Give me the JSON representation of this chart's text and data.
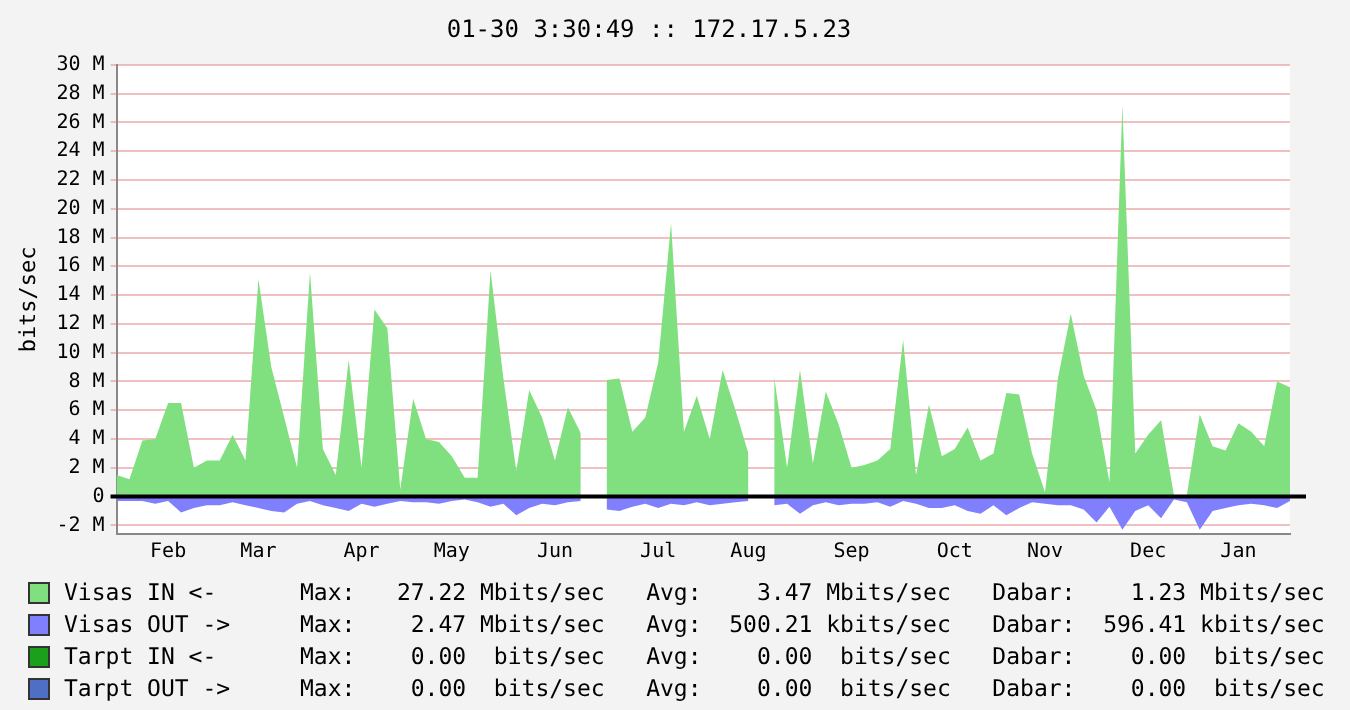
{
  "chart_data": {
    "type": "area",
    "title": "01-30 3:30:49 :: 172.17.5.23",
    "ylabel": "bits/sec",
    "categories": [
      null,
      null,
      null,
      null,
      "Feb",
      null,
      null,
      null,
      null,
      null,
      null,
      "Mar",
      null,
      null,
      null,
      null,
      null,
      null,
      null,
      "Apr",
      null,
      null,
      null,
      null,
      null,
      null,
      "May",
      null,
      null,
      null,
      null,
      null,
      null,
      null,
      "Jun",
      null,
      null,
      null,
      null,
      null,
      null,
      null,
      "Jul",
      null,
      null,
      null,
      null,
      null,
      null,
      "Aug",
      null,
      null,
      null,
      null,
      null,
      null,
      null,
      "Sep",
      null,
      null,
      null,
      null,
      null,
      null,
      null,
      "Oct",
      null,
      null,
      null,
      null,
      null,
      null,
      "Nov",
      null,
      null,
      null,
      null,
      null,
      null,
      null,
      "Dec",
      null,
      null,
      null,
      null,
      null,
      null,
      "Jan",
      null,
      null,
      null,
      null
    ],
    "ylim": [
      -2.6,
      30
    ],
    "yticks": [
      {
        "value": -2,
        "label": "-2 M"
      },
      0,
      {
        "value": 2,
        "label": "2 M"
      },
      {
        "value": 4,
        "label": "4 M"
      },
      {
        "value": 6,
        "label": "6 M"
      },
      {
        "value": 8,
        "label": "8 M"
      },
      {
        "value": 10,
        "label": "10 M"
      },
      {
        "value": 12,
        "label": "12 M"
      },
      {
        "value": 14,
        "label": "14 M"
      },
      {
        "value": 16,
        "label": "16 M"
      },
      {
        "value": 18,
        "label": "18 M"
      },
      {
        "value": 20,
        "label": "20 M"
      },
      {
        "value": 22,
        "label": "22 M"
      },
      {
        "value": 24,
        "label": "24 M"
      },
      {
        "value": 26,
        "label": "26 M"
      },
      {
        "value": 28,
        "label": "28 M"
      },
      {
        "value": 30,
        "label": "30 M"
      }
    ],
    "grid": "y",
    "legend": "bottom",
    "ref_lines": [
      {
        "axis": "y",
        "value": 0,
        "color": "#000000"
      }
    ],
    "series": [
      {
        "name": "Visas IN <-",
        "color": "#80e080",
        "values": [
          1.5,
          1.2,
          3.9,
          4.0,
          6.5,
          6.5,
          2.0,
          2.5,
          2.5,
          4.3,
          2.5,
          15.1,
          9.0,
          5.5,
          2.0,
          15.6,
          3.3,
          1.5,
          9.5,
          2.0,
          13.0,
          11.7,
          0.5,
          6.8,
          4.0,
          3.8,
          2.8,
          1.3,
          1.3,
          15.7,
          8.2,
          1.8,
          7.4,
          5.5,
          2.5,
          6.2,
          4.4,
          null,
          8.1,
          8.2,
          4.5,
          5.5,
          9.3,
          19.0,
          4.5,
          7.0,
          4.0,
          8.8,
          6.0,
          3.0,
          null,
          8.3,
          2.0,
          8.8,
          2.3,
          7.3,
          5.0,
          2.0,
          2.2,
          2.5,
          3.3,
          10.9,
          1.5,
          6.4,
          2.8,
          3.3,
          4.8,
          2.5,
          3.0,
          7.2,
          7.1,
          3.0,
          0.3,
          8.2,
          12.7,
          8.4,
          6.0,
          1.0,
          27.2,
          3.0,
          4.3,
          5.3,
          0.1,
          0.1,
          5.7,
          3.5,
          3.2,
          5.1,
          4.5,
          3.5,
          8.0,
          7.6
        ]
      },
      {
        "name": "Visas OUT ->",
        "color": "#8080ff",
        "values": [
          -0.3,
          -0.3,
          -0.3,
          -0.5,
          -0.3,
          -1.1,
          -0.8,
          -0.6,
          -0.6,
          -0.4,
          -0.6,
          -0.8,
          -1.0,
          -1.1,
          -0.5,
          -0.3,
          -0.6,
          -0.8,
          -1.0,
          -0.5,
          -0.7,
          -0.5,
          -0.3,
          -0.4,
          -0.4,
          -0.5,
          -0.3,
          -0.2,
          -0.4,
          -0.7,
          -0.5,
          -1.3,
          -0.8,
          -0.5,
          -0.6,
          -0.4,
          -0.3,
          null,
          -0.9,
          -1.0,
          -0.7,
          -0.5,
          -0.8,
          -0.5,
          -0.6,
          -0.4,
          -0.6,
          -0.5,
          -0.4,
          -0.3,
          null,
          -0.6,
          -0.5,
          -1.2,
          -0.6,
          -0.4,
          -0.6,
          -0.5,
          -0.5,
          -0.4,
          -0.7,
          -0.3,
          -0.5,
          -0.8,
          -0.8,
          -0.6,
          -1.0,
          -1.2,
          -0.6,
          -1.3,
          -0.8,
          -0.4,
          -0.5,
          -0.6,
          -0.6,
          -0.9,
          -1.8,
          -0.7,
          -2.3,
          -1.0,
          -0.6,
          -1.5,
          -0.2,
          -0.4,
          -2.3,
          -1.0,
          -0.8,
          -0.6,
          -0.5,
          -0.6,
          -0.8,
          -0.3
        ]
      },
      {
        "name": "Tarpt IN <-",
        "color": "#1aa01a",
        "values": [
          null,
          null,
          null,
          null,
          null,
          null,
          null,
          null,
          null,
          null,
          null,
          null,
          null,
          null,
          null,
          null,
          null,
          null,
          null,
          null,
          null,
          null,
          null,
          null,
          null,
          null,
          null,
          null,
          null,
          null,
          null,
          null,
          null,
          null,
          null,
          null,
          null,
          null,
          null,
          null,
          null,
          null,
          null,
          null,
          null,
          null,
          null,
          null,
          null,
          null,
          null,
          null,
          null,
          null,
          null,
          null,
          null,
          null,
          null,
          null,
          null,
          null,
          null,
          null,
          null,
          null,
          null,
          null,
          null,
          null,
          null,
          null,
          null,
          null,
          null,
          null,
          null,
          null,
          null,
          null,
          null,
          null,
          null,
          null,
          null,
          null,
          null,
          null,
          null,
          null,
          null,
          null
        ]
      },
      {
        "name": "Tarpt OUT ->",
        "color": "#4e6fc4",
        "values": [
          null,
          null,
          null,
          null,
          null,
          null,
          null,
          null,
          null,
          null,
          null,
          null,
          null,
          null,
          null,
          null,
          null,
          null,
          null,
          null,
          null,
          null,
          null,
          null,
          null,
          null,
          null,
          null,
          null,
          null,
          null,
          null,
          null,
          null,
          null,
          null,
          null,
          null,
          null,
          null,
          null,
          null,
          null,
          null,
          null,
          null,
          null,
          null,
          null,
          null,
          null,
          null,
          null,
          null,
          null,
          null,
          null,
          null,
          null,
          null,
          null,
          null,
          null,
          null,
          null,
          null,
          null,
          null,
          null,
          null,
          null,
          null,
          null,
          null,
          null,
          null,
          null,
          null,
          null,
          null,
          null,
          null,
          null,
          null,
          null,
          null,
          null,
          null,
          null,
          null,
          null,
          null
        ]
      }
    ],
    "annotations": [
      "Max:   27.22 Mbits/sec   Avg:    3.47 Mbits/sec   Dabar:    1.23 Mbits/sec",
      "Max:    2.47 Mbits/sec   Avg:  500.21 kbits/sec   Dabar:  596.41 kbits/sec",
      "Max:    0.00  bits/sec   Avg:    0.00  bits/sec   Dabar:    0.00  bits/sec",
      "Max:    0.00  bits/sec   Avg:    0.00  bits/sec   Dabar:    0.00  bits/sec"
    ]
  }
}
